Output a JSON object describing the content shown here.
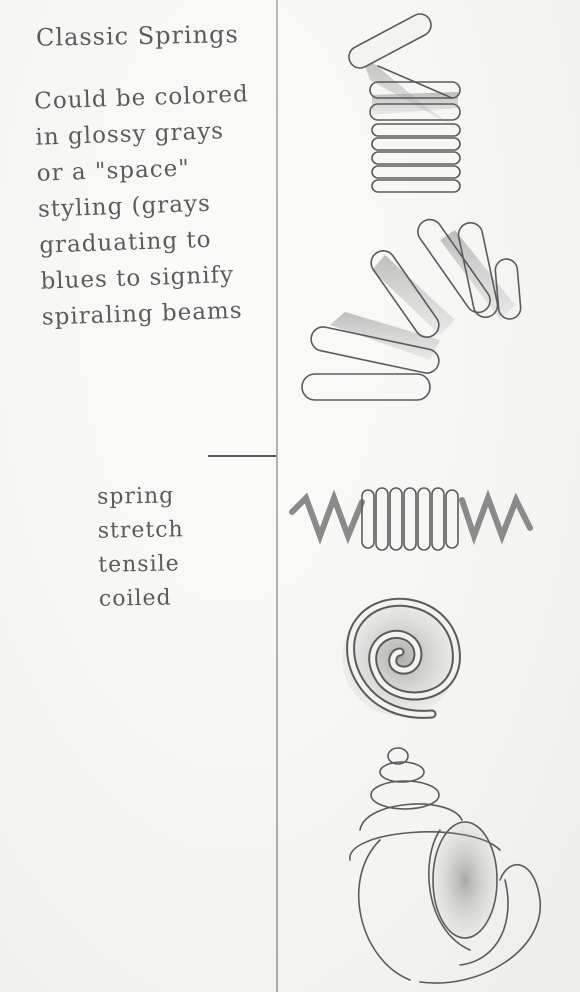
{
  "notes": {
    "title": "Classic Springs",
    "description": "Could be colored\nin glossy grays\nor a \"space\"\nstyling (grays\ngraduating to\nblues to signify\nspiraling beams",
    "keywords": "spring\nstretch\ntensile\ncoiled"
  },
  "sketches": [
    "coil-spring-compressed-sketch",
    "coil-spring-leaning-sketch",
    "coil-spring-horizontal-sketch",
    "flat-spiral-sketch",
    "conical-shell-spring-sketch"
  ],
  "colors": {
    "paper": "#f5f5f3",
    "pencil": "#5b5b5b",
    "shade": "#9a9a9a"
  }
}
